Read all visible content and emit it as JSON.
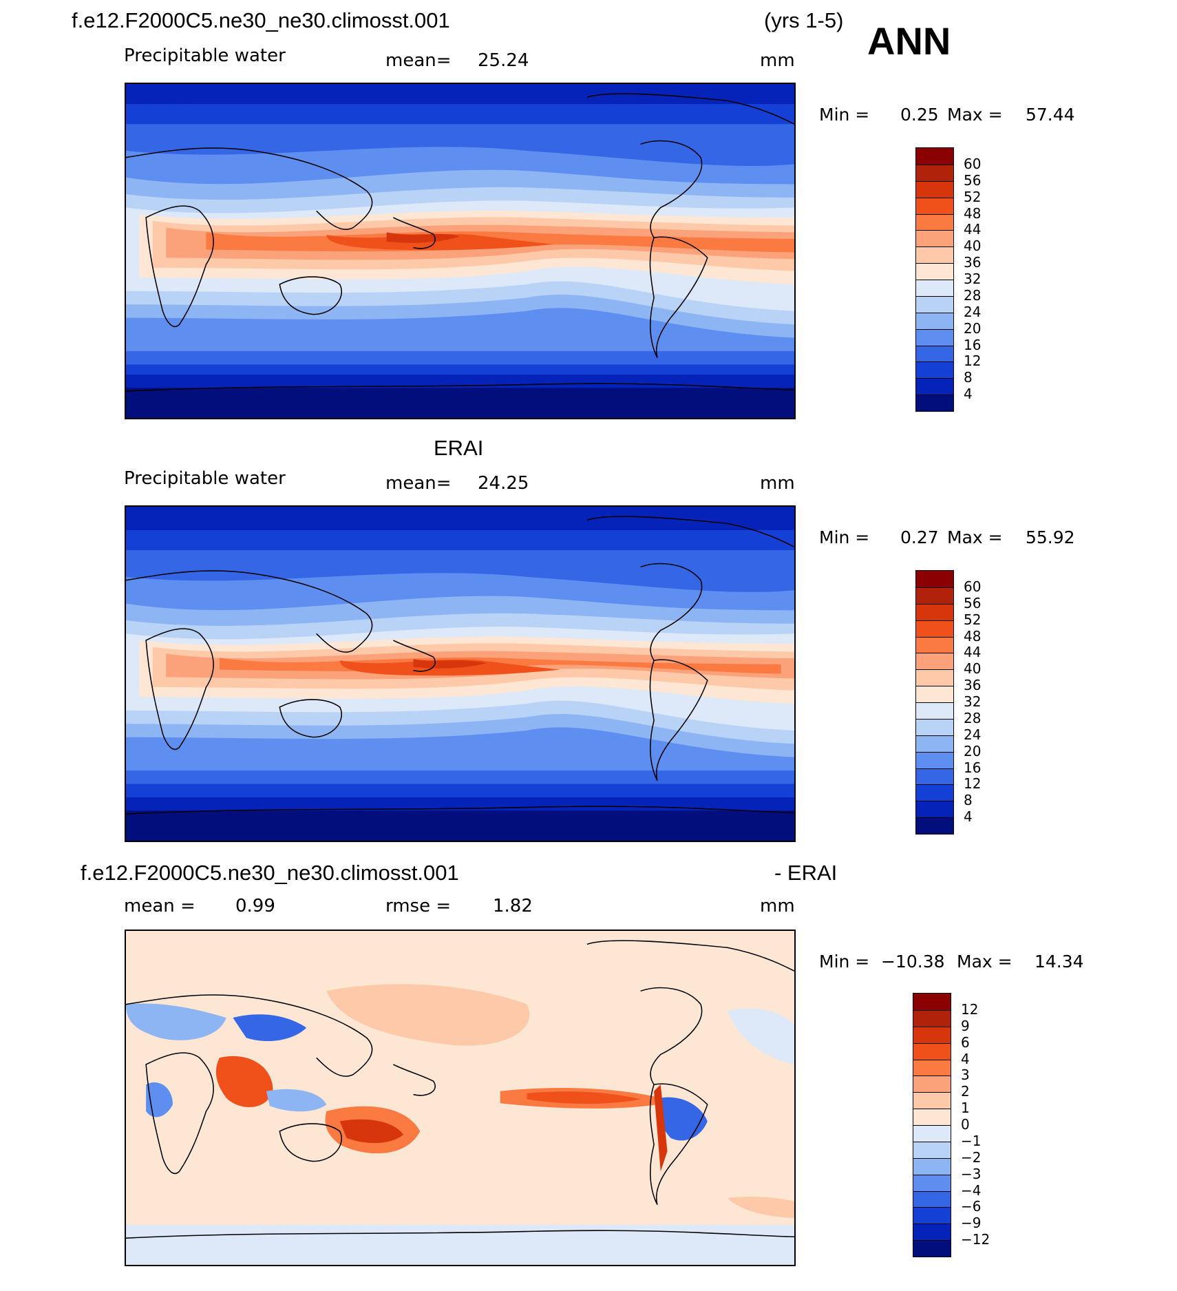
{
  "annotation": "ANN",
  "panels": [
    {
      "id": "model",
      "header_left": "f.e12.F2000C5.ne30_ne30.climosst.001",
      "header_right": "(yrs 1-5)",
      "variable": "Precipitable water",
      "stat1_label": "mean=",
      "stat1_value": "25.24",
      "stat2_label": "",
      "stat2_value": "",
      "units": "mm",
      "min_label": "Min =",
      "min_value": "0.25",
      "max_label": "Max =",
      "max_value": "57.44",
      "colorbar": {
        "levels": [
          "60",
          "56",
          "52",
          "48",
          "44",
          "40",
          "36",
          "32",
          "28",
          "24",
          "20",
          "16",
          "12",
          "8",
          "4"
        ],
        "colors": [
          "#8b0000",
          "#b0230a",
          "#d7360c",
          "#f0501a",
          "#fb7a42",
          "#fca27a",
          "#fdc9a8",
          "#fde6d3",
          "#dde9f8",
          "#b9d3f6",
          "#8eb5f3",
          "#5e8ff0",
          "#3566e6",
          "#1540d6",
          "#0523b8",
          "#020e7c"
        ]
      }
    },
    {
      "id": "obs",
      "header_left": "",
      "header_center": "ERAI",
      "variable": "Precipitable water",
      "stat1_label": "mean=",
      "stat1_value": "24.25",
      "stat2_label": "",
      "stat2_value": "",
      "units": "mm",
      "min_label": "Min =",
      "min_value": "0.27",
      "max_label": "Max =",
      "max_value": "55.92",
      "colorbar": {
        "levels": [
          "60",
          "56",
          "52",
          "48",
          "44",
          "40",
          "36",
          "32",
          "28",
          "24",
          "20",
          "16",
          "12",
          "8",
          "4"
        ],
        "colors": [
          "#8b0000",
          "#b0230a",
          "#d7360c",
          "#f0501a",
          "#fb7a42",
          "#fca27a",
          "#fdc9a8",
          "#fde6d3",
          "#dde9f8",
          "#b9d3f6",
          "#8eb5f3",
          "#5e8ff0",
          "#3566e6",
          "#1540d6",
          "#0523b8",
          "#020e7c"
        ]
      }
    },
    {
      "id": "diff",
      "header_left": "f.e12.F2000C5.ne30_ne30.climosst.001",
      "header_right": "- ERAI",
      "variable": "",
      "stat1_label": "mean =",
      "stat1_value": "0.99",
      "stat2_label": "rmse =",
      "stat2_value": "1.82",
      "units": "mm",
      "min_label": "Min =",
      "min_value": "−10.38",
      "max_label": "Max =",
      "max_value": "14.34",
      "colorbar": {
        "levels": [
          "12",
          "9",
          "6",
          "4",
          "3",
          "2",
          "1",
          "0",
          "−1",
          "−2",
          "−3",
          "−4",
          "−6",
          "−9",
          "−12"
        ],
        "colors": [
          "#8b0000",
          "#b0230a",
          "#d7360c",
          "#f0501a",
          "#fb7a42",
          "#fca27a",
          "#fdc9a8",
          "#fde6d3",
          "#dde9f8",
          "#b9d3f6",
          "#8eb5f3",
          "#5e8ff0",
          "#3566e6",
          "#1540d6",
          "#0523b8",
          "#020e7c"
        ]
      }
    }
  ]
}
